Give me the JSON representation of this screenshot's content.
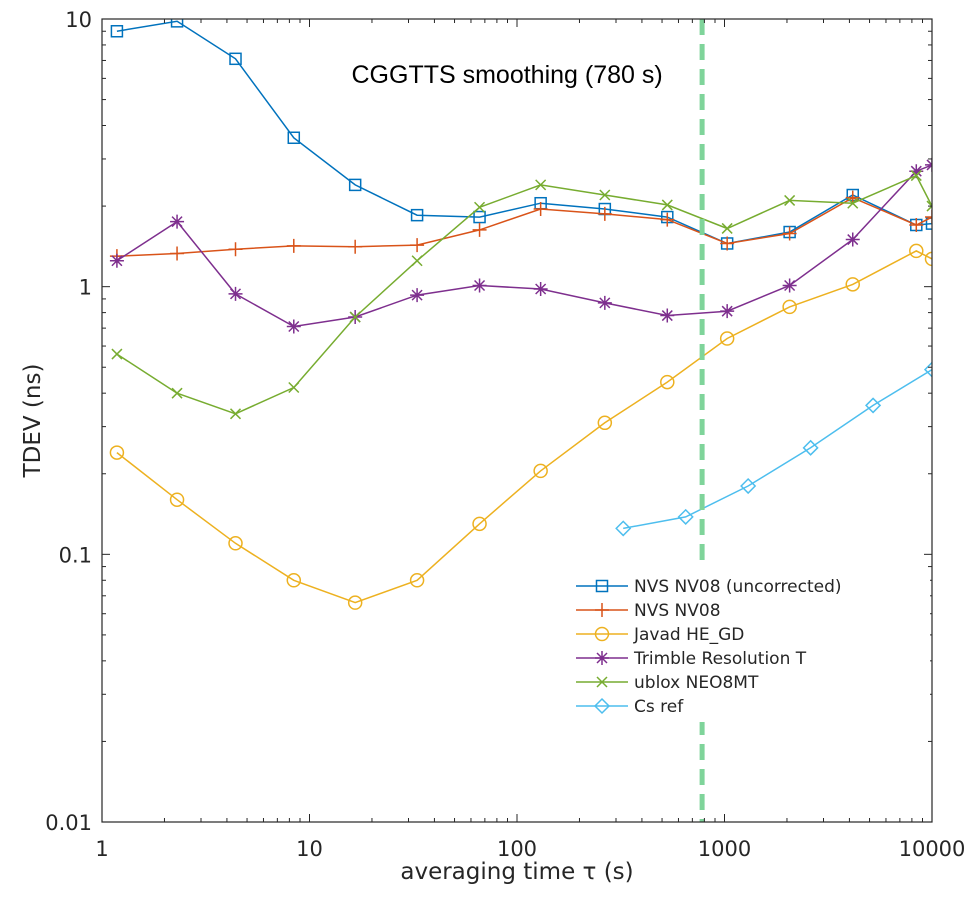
{
  "chart_data": {
    "type": "line",
    "title": "",
    "xlabel": "averaging time τ (s)",
    "ylabel": "TDEV (ns)",
    "xscale": "log",
    "yscale": "log",
    "xlim": [
      1,
      10000
    ],
    "ylim": [
      0.01,
      10
    ],
    "xticks": [
      {
        "value": 1,
        "label": "1"
      },
      {
        "value": 10,
        "label": "10"
      },
      {
        "value": 100,
        "label": "100"
      },
      {
        "value": 1000,
        "label": "1000"
      },
      {
        "value": 10000,
        "label": "10000"
      }
    ],
    "yticks": [
      {
        "value": 0.01,
        "label": "0.01"
      },
      {
        "value": 0.1,
        "label": "0.1"
      },
      {
        "value": 1,
        "label": "1"
      },
      {
        "value": 10,
        "label": "10"
      }
    ],
    "grid": false,
    "legend_position": "bottom-right",
    "annotation": {
      "text": "CGGTTS smoothing (780 s)",
      "x": 780,
      "line_color": "#7fd49a"
    },
    "series": [
      {
        "name": "NVS NV08 (uncorrected)",
        "color": "#0072bd",
        "marker": "square",
        "x": [
          1.18,
          2.3,
          4.4,
          8.4,
          16.6,
          33,
          66,
          130,
          265,
          530,
          1030,
          2060,
          4150,
          8400,
          10000
        ],
        "y": [
          9.0,
          9.8,
          7.1,
          3.6,
          2.4,
          1.85,
          1.82,
          2.05,
          1.95,
          1.82,
          1.45,
          1.6,
          2.2,
          1.7,
          1.72
        ]
      },
      {
        "name": "NVS NV08",
        "color": "#d95319",
        "marker": "plus",
        "x": [
          1.18,
          2.3,
          4.4,
          8.4,
          16.6,
          33,
          66,
          130,
          265,
          530,
          1030,
          2060,
          4150,
          8400,
          10000
        ],
        "y": [
          1.3,
          1.33,
          1.38,
          1.42,
          1.41,
          1.43,
          1.63,
          1.95,
          1.87,
          1.78,
          1.45,
          1.58,
          2.15,
          1.7,
          1.82
        ]
      },
      {
        "name": "Javad HE_GD",
        "color": "#edb120",
        "marker": "circle",
        "x": [
          1.18,
          2.3,
          4.4,
          8.4,
          16.6,
          33,
          66,
          130,
          265,
          530,
          1030,
          2060,
          4150,
          8400,
          10000
        ],
        "y": [
          0.24,
          0.16,
          0.11,
          0.08,
          0.066,
          0.08,
          0.13,
          0.205,
          0.31,
          0.44,
          0.64,
          0.84,
          1.02,
          1.36,
          1.27
        ]
      },
      {
        "name": "Trimble Resolution T",
        "color": "#7e2f8e",
        "marker": "asterisk",
        "x": [
          1.18,
          2.3,
          4.4,
          8.4,
          16.6,
          33,
          66,
          130,
          265,
          530,
          1030,
          2060,
          4150,
          8400,
          10000
        ],
        "y": [
          1.25,
          1.75,
          0.94,
          0.71,
          0.77,
          0.93,
          1.01,
          0.98,
          0.87,
          0.78,
          0.81,
          1.01,
          1.5,
          2.7,
          2.85
        ]
      },
      {
        "name": "ublox NEO8MT",
        "color": "#77ac30",
        "marker": "cross",
        "x": [
          1.18,
          2.3,
          4.4,
          8.4,
          16.6,
          33,
          66,
          130,
          265,
          530,
          1030,
          2060,
          4150,
          8400,
          10000
        ],
        "y": [
          0.56,
          0.4,
          0.335,
          0.42,
          0.77,
          1.25,
          1.98,
          2.4,
          2.2,
          2.02,
          1.65,
          2.1,
          2.05,
          2.6,
          2.0
        ]
      },
      {
        "name": "Cs ref",
        "color": "#4dbeee",
        "marker": "diamond",
        "x": [
          325,
          650,
          1300,
          2600,
          5200,
          10000
        ],
        "y": [
          0.125,
          0.138,
          0.18,
          0.25,
          0.36,
          0.49
        ]
      }
    ]
  }
}
